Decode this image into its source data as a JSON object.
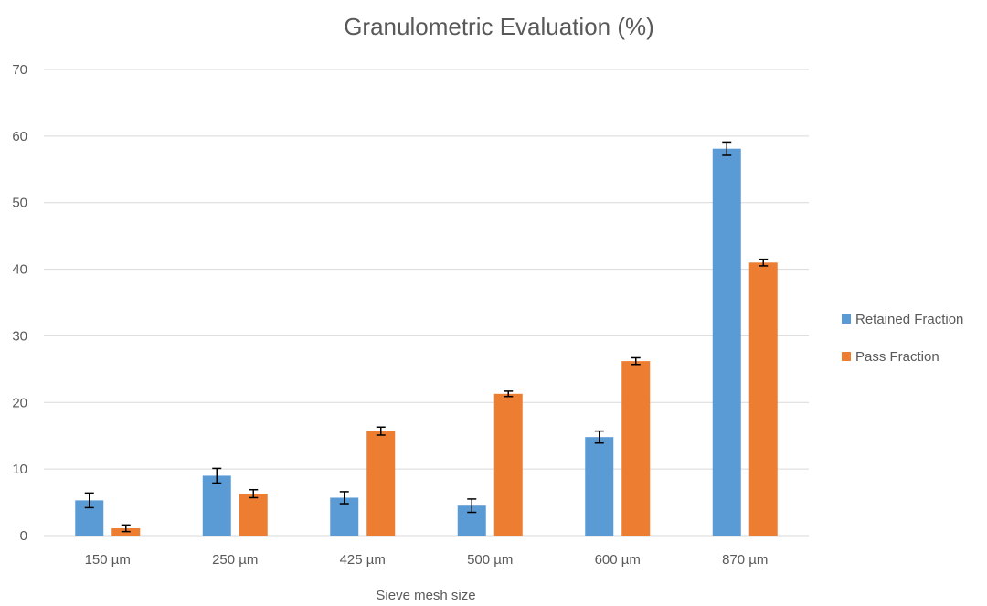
{
  "chart_data": {
    "type": "bar",
    "title": "Granulometric Evaluation (%)",
    "xlabel": "Sieve mesh size",
    "ylabel": "",
    "ylim": [
      0,
      70
    ],
    "yticks": [
      0,
      10,
      20,
      30,
      40,
      50,
      60,
      70
    ],
    "grid": true,
    "legend_position": "right",
    "categories": [
      "150 µm",
      "250 µm",
      "425 µm",
      "500 µm",
      "600 µm",
      "870 µm"
    ],
    "series": [
      {
        "name": "Retained Fraction",
        "color": "#5B9BD5",
        "values": [
          5.3,
          9.0,
          5.7,
          4.5,
          14.8,
          58.1
        ],
        "errors": [
          1.1,
          1.1,
          0.9,
          1.0,
          0.9,
          1.0
        ]
      },
      {
        "name": "Pass Fraction",
        "color": "#ED7D31",
        "values": [
          1.1,
          6.3,
          15.7,
          21.3,
          26.2,
          41.0
        ],
        "errors": [
          0.5,
          0.6,
          0.6,
          0.4,
          0.5,
          0.5
        ]
      }
    ]
  }
}
